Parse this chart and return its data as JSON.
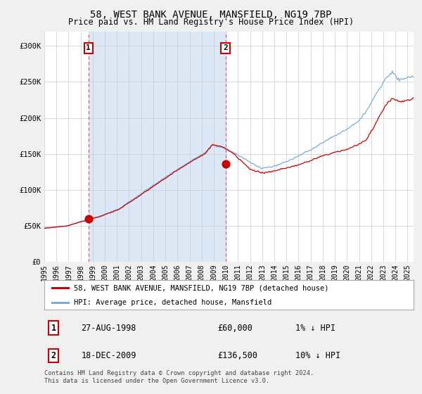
{
  "title": "58, WEST BANK AVENUE, MANSFIELD, NG19 7BP",
  "subtitle": "Price paid vs. HM Land Registry's House Price Index (HPI)",
  "legend_line1": "58, WEST BANK AVENUE, MANSFIELD, NG19 7BP (detached house)",
  "legend_line2": "HPI: Average price, detached house, Mansfield",
  "sale1_label": "1",
  "sale1_date": "27-AUG-1998",
  "sale1_price": "£60,000",
  "sale1_hpi": "1% ↓ HPI",
  "sale1_year": 1998.65,
  "sale1_value": 60000,
  "sale2_label": "2",
  "sale2_date": "18-DEC-2009",
  "sale2_price": "£136,500",
  "sale2_hpi": "10% ↓ HPI",
  "sale2_year": 2009.96,
  "sale2_value": 136500,
  "shaded_start": 1998.65,
  "shaded_end": 2009.96,
  "xmin": 1995.0,
  "xmax": 2025.5,
  "ymin": 0,
  "ymax": 320000,
  "background_color": "#f0f0f0",
  "plot_bg_color": "#ffffff",
  "shaded_color": "#dce8f5",
  "grid_color": "#cccccc",
  "red_line_color": "#cc0000",
  "blue_line_color": "#7aade0",
  "dashed_line_color": "#e05050",
  "footnote": "Contains HM Land Registry data © Crown copyright and database right 2024.\nThis data is licensed under the Open Government Licence v3.0.",
  "yticks": [
    0,
    50000,
    100000,
    150000,
    200000,
    250000,
    300000
  ],
  "ytick_labels": [
    "£0",
    "£50K",
    "£100K",
    "£150K",
    "£200K",
    "£250K",
    "£300K"
  ]
}
